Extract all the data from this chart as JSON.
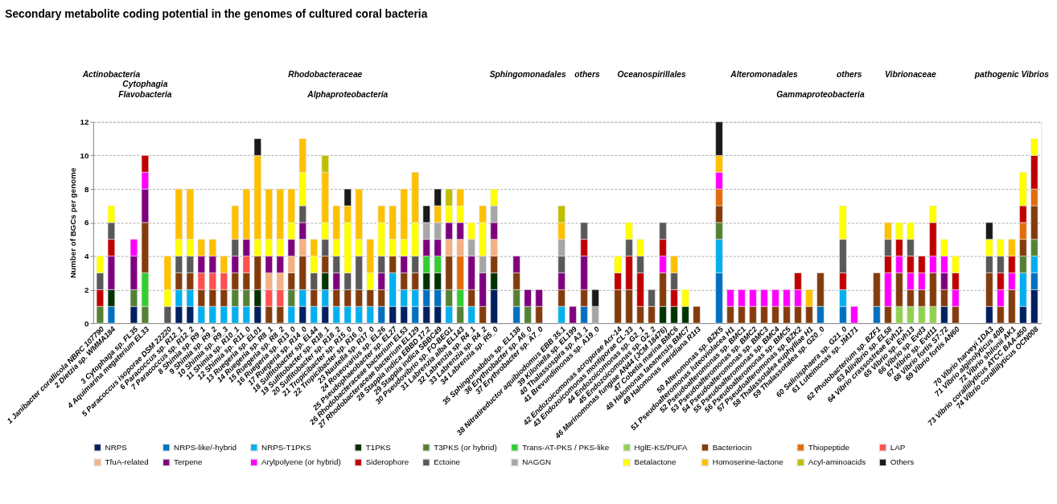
{
  "chart_data": {
    "type": "bar",
    "stacked": true,
    "title": "Secondary metabolite coding potential in the genomes of cultured coral bacteria",
    "ylabel": "Number of BGCs per genome",
    "ylim": [
      0,
      12
    ],
    "yticks": [
      0,
      2,
      4,
      6,
      8,
      10,
      12
    ],
    "grid": "y",
    "legend": "bottom",
    "annotations": [
      "Actinobacteria",
      "Cytophagia",
      "Flavobacteria",
      "Rhodobacteraceae",
      "Alphaproteobacteria",
      "Sphingomonadales",
      "others",
      "Oceanospirillales",
      "Alteromonadales",
      "others",
      "Vibrionaceae",
      "pathogenic Vibrios",
      "Gammaproteobacteria"
    ],
    "categories": [
      "1 Janibacter corallicola NBRC 107790",
      "2 Dietzia sp. WMMA184",
      null,
      "3 Cytophaga sp. FL35",
      "4 Aquimarina megaterium EL33",
      null,
      "5 Paracoccus isoporae DSM 22220",
      "6 Paracoccus sp. R12_1",
      "7 Paracoccus sp. R12_2",
      "8 Shimia sp. R9_1",
      "9 Shimia sp. R9_2",
      "10 Shimia sp. R9_3",
      "11 Shimia sp. R10_1",
      "12 Shimia sp. R11_0",
      "13 Ruegeria sp. EL01",
      "14 Ruegeria sp. R8_1",
      "15 Ruegeria sp. R8_2",
      "16 Ruegeria sp. R13_0",
      "17 Ruegeria sp. R14_0",
      "18 Sulfitobacter sp. EL44",
      "19 Sulfitobacter sp. R18_1",
      "20 Sulfitobacter sp. R18_2",
      "21 Tropicibacter sp. R15_0",
      "22 Tropicibacter sp. R16_0",
      "23 Nautella sp. R17_0",
      "24 Roseovarius sp. EL26",
      "25 Pseudophaeobacter sp. EL27",
      "26 Rhodobacteraceae bacterium EL53",
      "27 Rhodobacteraceae bacterium EL129",
      "28 Stappia indica EBBD 17.2",
      "29 Stappia indica SBBC49",
      "30 Pseudovibrio sp. FO-BEG1",
      "31 Labrenzia alba EL143",
      "32 Labrenzia sp. R4_1",
      "33 Labrenzia sp. R4_2",
      "34 Labrenzia sp. R5_0",
      null,
      "35 Sphingorhabdus sp. EL138",
      "36 Erythrobacter sp. A6_0",
      "37 Erythrobacter sp. A7_0",
      null,
      "38 Nitratireductor aquibiodomus EBB 35.1",
      "39 Kiloniella sp. EL199",
      "40 Thalassospira sp. A3_1",
      "41 Brevundimonas sp. A19_0",
      null,
      "42 Endozoicomonas acroporae Acr-14",
      "43 Endozoicomonas montiporae CL-33",
      "44 Endozoicomonas sp. G2_1",
      "45 Endozoicomonas sp. G2_2",
      "46 Marinomonas fungiae AN44 (JCM 18476)",
      "47 Cobetia marina BMC6",
      "48 Halomonas taeanensis BMC7",
      "49 Halomonas meridiana R1t3",
      null,
      "50 Alteromonas sp. BZK5",
      "51 Pseudoalteromonas luteoviolacea H1",
      "52 Pseudoalteromonas sp. BMC1",
      "53 Pseudoalteromonas sp. BMC2",
      "54 Pseudoalteromonas sp. BMC3",
      "55 Pseudoalteromonas sp. BMC4",
      "56 Pseudoalteromonas sp. BMC5",
      "57 Pseudoalteromonas sp. BZK2",
      "58 Thalassotalea euphylliae H1",
      "59 Thalassotalea sp. G20_0",
      null,
      "60 Salinisphaera sp. G21_0",
      "61 Luteimonas sp. JM171",
      null,
      "62 Photobacterium sp. BZF1",
      "63 Aliivibrio sp. EL58",
      "64 Vibrio crassostreae Evh12",
      "65 Vibrio sp. Evh13",
      "66 Vibrio sp. Evd3",
      "67 Vibrio sp. Evd11",
      "68 Vibrio fortis S7-72",
      "69 Vibrio fortis AN60",
      null,
      null,
      "70 Vibrio harveyi 1DA3",
      "71 Vibrio alginolyticus 40B",
      "72 Vibrio shilonii AK1",
      "73 Vibrio coralliilyticus ATCC BAA-450",
      "74 Vibrio coralliilyticus OCN008"
    ],
    "series": [
      {
        "name": "NRPS",
        "color": "#002060",
        "values": [
          0,
          0,
          null,
          1,
          0,
          null,
          0,
          1,
          1,
          0,
          0,
          0,
          0,
          0,
          1,
          0,
          0,
          0,
          1,
          0,
          1,
          0,
          0,
          0,
          0,
          0,
          1,
          1,
          0,
          1,
          1,
          0,
          0,
          0,
          0,
          2,
          null,
          0,
          0,
          0,
          null,
          0,
          0,
          0,
          0,
          null,
          0,
          0,
          0,
          0,
          0,
          0,
          0,
          0,
          null,
          0,
          0,
          0,
          0,
          0,
          0,
          0,
          0,
          0,
          0,
          null,
          0,
          0,
          null,
          0,
          0,
          0,
          0,
          0,
          0,
          1,
          0,
          null,
          null,
          1,
          0,
          0,
          1,
          2
        ]
      },
      {
        "name": "NRPS-like/-hybrid",
        "color": "#0070c0",
        "values": [
          0,
          1,
          null,
          0,
          0,
          null,
          0,
          0,
          0,
          0,
          0,
          0,
          0,
          0,
          0,
          0,
          0,
          0,
          0,
          0,
          0,
          0,
          0,
          0,
          0,
          1,
          0,
          0,
          1,
          1,
          1,
          0,
          0,
          0,
          0,
          0,
          null,
          1,
          0,
          0,
          null,
          0,
          0,
          1,
          0,
          null,
          0,
          0,
          0,
          0,
          0,
          0,
          0,
          0,
          null,
          3,
          0,
          0,
          0,
          0,
          0,
          0,
          0,
          0,
          1,
          null,
          1,
          0,
          null,
          1,
          0,
          0,
          0,
          0,
          0,
          0,
          0,
          null,
          null,
          0,
          0,
          0,
          0,
          1
        ]
      },
      {
        "name": "NRPS-T1PKS",
        "color": "#00b0f0",
        "values": [
          0,
          0,
          null,
          0,
          0,
          null,
          0,
          1,
          1,
          1,
          1,
          1,
          1,
          1,
          0,
          0,
          0,
          1,
          1,
          1,
          1,
          1,
          1,
          1,
          1,
          0,
          2,
          1,
          1,
          0,
          0,
          1,
          0,
          1,
          0,
          0,
          null,
          0,
          0,
          0,
          null,
          1,
          0,
          0,
          0,
          null,
          0,
          0,
          0,
          0,
          0,
          0,
          0,
          0,
          null,
          2,
          0,
          0,
          0,
          0,
          0,
          0,
          0,
          0,
          0,
          null,
          1,
          0,
          null,
          0,
          0,
          0,
          0,
          0,
          0,
          0,
          0,
          null,
          null,
          0,
          0,
          0,
          2,
          1
        ]
      },
      {
        "name": "T1PKS",
        "color": "#003300",
        "values": [
          0,
          1,
          null,
          0,
          0,
          null,
          0,
          0,
          0,
          0,
          0,
          0,
          0,
          0,
          1,
          0,
          0,
          0,
          0,
          0,
          1,
          0,
          0,
          0,
          0,
          0,
          0,
          0,
          0,
          1,
          1,
          0,
          0,
          0,
          0,
          1,
          null,
          0,
          0,
          0,
          null,
          0,
          0,
          0,
          0,
          null,
          0,
          0,
          0,
          0,
          1,
          1,
          1,
          0,
          null,
          0,
          0,
          0,
          0,
          0,
          0,
          0,
          0,
          0,
          0,
          null,
          0,
          0,
          null,
          0,
          0,
          0,
          0,
          0,
          0,
          0,
          0,
          null,
          null,
          0,
          0,
          0,
          0,
          0
        ]
      },
      {
        "name": "T3PKS (or hybrid)",
        "color": "#548235",
        "values": [
          1,
          0,
          null,
          1,
          1,
          null,
          0,
          0,
          0,
          0,
          0,
          0,
          1,
          1,
          0,
          0,
          0,
          1,
          0,
          0,
          0,
          0,
          0,
          0,
          0,
          0,
          0,
          0,
          0,
          0,
          0,
          1,
          1,
          0,
          0,
          0,
          null,
          1,
          1,
          0,
          null,
          0,
          0,
          0,
          0,
          null,
          0,
          0,
          0,
          0,
          0,
          0,
          0,
          0,
          null,
          1,
          0,
          0,
          0,
          0,
          0,
          0,
          0,
          0,
          0,
          null,
          0,
          0,
          null,
          0,
          0,
          0,
          0,
          0,
          0,
          0,
          0,
          null,
          null,
          0,
          0,
          0,
          1,
          1
        ]
      },
      {
        "name": "Trans-AT-PKS / PKS-like",
        "color": "#33cc33",
        "values": [
          0,
          0,
          null,
          0,
          2,
          null,
          0,
          0,
          0,
          0,
          0,
          0,
          0,
          0,
          0,
          0,
          0,
          0,
          0,
          0,
          0,
          0,
          0,
          0,
          0,
          0,
          0,
          0,
          0,
          1,
          1,
          0,
          1,
          0,
          0,
          0,
          null,
          0,
          0,
          0,
          null,
          0,
          0,
          0,
          0,
          null,
          0,
          0,
          0,
          0,
          0,
          0,
          0,
          0,
          null,
          0,
          0,
          0,
          0,
          0,
          0,
          0,
          0,
          0,
          0,
          null,
          0,
          0,
          null,
          0,
          0,
          0,
          0,
          0,
          0,
          0,
          0,
          null,
          null,
          0,
          0,
          0,
          0,
          0
        ]
      },
      {
        "name": "HglE-KS/PUFA",
        "color": "#92d050",
        "values": [
          0,
          0,
          null,
          0,
          0,
          null,
          0,
          0,
          0,
          0,
          0,
          0,
          0,
          0,
          0,
          0,
          0,
          0,
          0,
          0,
          0,
          0,
          0,
          0,
          0,
          0,
          0,
          0,
          0,
          0,
          0,
          0,
          0,
          0,
          0,
          0,
          null,
          0,
          0,
          0,
          null,
          0,
          0,
          0,
          0,
          null,
          0,
          0,
          0,
          0,
          0,
          0,
          0,
          0,
          null,
          0,
          0,
          0,
          0,
          0,
          0,
          0,
          0,
          0,
          0,
          null,
          0,
          0,
          null,
          0,
          0,
          1,
          1,
          1,
          1,
          0,
          0,
          null,
          null,
          0,
          0,
          0,
          0,
          0
        ]
      },
      {
        "name": "Bacteriocin",
        "color": "#843c0c",
        "values": [
          0,
          0,
          null,
          0,
          3,
          null,
          0,
          1,
          1,
          1,
          1,
          1,
          1,
          1,
          2,
          1,
          1,
          1,
          2,
          1,
          1,
          1,
          1,
          1,
          1,
          1,
          1,
          1,
          1,
          0,
          0,
          2,
          0,
          1,
          1,
          1,
          null,
          1,
          0,
          1,
          null,
          1,
          0,
          1,
          0,
          null,
          2,
          2,
          1,
          1,
          2,
          0,
          0,
          1,
          null,
          1,
          1,
          1,
          1,
          1,
          1,
          1,
          1,
          1,
          2,
          null,
          0,
          0,
          null,
          2,
          1,
          2,
          1,
          1,
          2,
          1,
          1,
          null,
          null,
          2,
          1,
          2,
          1,
          2
        ]
      },
      {
        "name": "Thiopeptide",
        "color": "#e46c0a",
        "values": [
          0,
          0,
          null,
          0,
          0,
          null,
          0,
          0,
          0,
          0,
          0,
          0,
          0,
          0,
          0,
          0,
          0,
          0,
          0,
          0,
          0,
          0,
          0,
          0,
          0,
          0,
          0,
          0,
          0,
          0,
          0,
          0,
          2,
          0,
          0,
          0,
          null,
          0,
          0,
          0,
          null,
          0,
          0,
          0,
          0,
          null,
          0,
          0,
          0,
          0,
          0,
          0,
          0,
          0,
          null,
          1,
          0,
          0,
          0,
          0,
          0,
          0,
          0,
          0,
          0,
          null,
          0,
          0,
          null,
          0,
          0,
          0,
          0,
          0,
          0,
          0,
          0,
          null,
          null,
          0,
          0,
          0,
          1,
          1
        ]
      },
      {
        "name": "LAP",
        "color": "#ff5050",
        "values": [
          0,
          0,
          null,
          0,
          0,
          null,
          0,
          0,
          0,
          1,
          1,
          1,
          0,
          1,
          0,
          1,
          1,
          0,
          0,
          0,
          0,
          0,
          0,
          0,
          0,
          0,
          0,
          0,
          0,
          0,
          0,
          0,
          0,
          0,
          0,
          0,
          null,
          0,
          0,
          0,
          null,
          0,
          0,
          0,
          0,
          null,
          0,
          0,
          0,
          0,
          0,
          0,
          0,
          0,
          null,
          0,
          0,
          0,
          0,
          0,
          0,
          0,
          0,
          0,
          0,
          null,
          0,
          0,
          null,
          0,
          0,
          0,
          0,
          0,
          0,
          0,
          0,
          null,
          null,
          0,
          0,
          0,
          0,
          0
        ]
      },
      {
        "name": "TfuA-related",
        "color": "#f4b183",
        "values": [
          0,
          0,
          null,
          0,
          0,
          null,
          0,
          0,
          0,
          0,
          0,
          0,
          0,
          0,
          0,
          1,
          1,
          1,
          1,
          0,
          0,
          0,
          0,
          0,
          0,
          0,
          0,
          0,
          0,
          0,
          0,
          1,
          1,
          0,
          0,
          1,
          null,
          0,
          0,
          0,
          null,
          0,
          0,
          0,
          0,
          null,
          0,
          0,
          0,
          0,
          0,
          0,
          0,
          0,
          null,
          0,
          0,
          0,
          0,
          0,
          0,
          0,
          0,
          0,
          0,
          null,
          0,
          0,
          null,
          0,
          0,
          0,
          0,
          0,
          0,
          0,
          0,
          null,
          null,
          0,
          0,
          0,
          0,
          0
        ]
      },
      {
        "name": "Terpene",
        "color": "#7f007f",
        "values": [
          0,
          2,
          null,
          2,
          2,
          null,
          0,
          0,
          0,
          1,
          1,
          0,
          1,
          1,
          0,
          1,
          1,
          1,
          1,
          0,
          0,
          1,
          0,
          0,
          0,
          1,
          0,
          1,
          0,
          1,
          1,
          1,
          1,
          2,
          2,
          1,
          null,
          1,
          1,
          1,
          null,
          1,
          1,
          2,
          0,
          null,
          0,
          0,
          0,
          0,
          0,
          0,
          0,
          0,
          null,
          0,
          0,
          0,
          0,
          0,
          0,
          0,
          0,
          0,
          0,
          null,
          0,
          0,
          null,
          0,
          0,
          0,
          0,
          0,
          0,
          1,
          0,
          null,
          null,
          0,
          0,
          0,
          0,
          0
        ]
      },
      {
        "name": "Arylpolyene (or hybrid)",
        "color": "#ff00ff",
        "values": [
          0,
          0,
          null,
          1,
          1,
          null,
          0,
          0,
          0,
          0,
          0,
          0,
          0,
          0,
          0,
          0,
          0,
          0,
          0,
          0,
          0,
          0,
          0,
          0,
          0,
          0,
          0,
          0,
          0,
          0,
          0,
          0,
          0,
          0,
          0,
          0,
          null,
          0,
          0,
          0,
          null,
          0,
          0,
          0,
          0,
          null,
          0,
          0,
          0,
          0,
          1,
          0,
          0,
          0,
          null,
          1,
          1,
          1,
          1,
          1,
          1,
          1,
          1,
          0,
          0,
          null,
          0,
          1,
          null,
          0,
          2,
          1,
          1,
          1,
          1,
          1,
          1,
          null,
          null,
          0,
          1,
          1,
          0,
          0
        ]
      },
      {
        "name": "Siderophore",
        "color": "#c00000",
        "values": [
          1,
          1,
          null,
          0,
          1,
          null,
          0,
          0,
          0,
          0,
          0,
          0,
          0,
          0,
          0,
          0,
          0,
          0,
          0,
          0,
          0,
          0,
          0,
          0,
          0,
          0,
          0,
          0,
          0,
          0,
          0,
          0,
          0,
          0,
          0,
          0,
          null,
          0,
          0,
          0,
          null,
          0,
          0,
          1,
          0,
          null,
          1,
          2,
          2,
          0,
          1,
          1,
          0,
          0,
          null,
          0,
          0,
          0,
          0,
          0,
          0,
          0,
          1,
          0,
          0,
          null,
          1,
          0,
          null,
          0,
          1,
          1,
          1,
          1,
          2,
          0,
          1,
          null,
          null,
          0,
          1,
          1,
          1,
          2
        ]
      },
      {
        "name": "Ectoine",
        "color": "#595959",
        "values": [
          1,
          1,
          null,
          0,
          0,
          null,
          1,
          1,
          1,
          0,
          0,
          0,
          1,
          0,
          0,
          0,
          0,
          0,
          1,
          1,
          1,
          1,
          1,
          2,
          0,
          1,
          0,
          0,
          1,
          0,
          0,
          0,
          0,
          0,
          0,
          0,
          null,
          0,
          0,
          0,
          null,
          1,
          0,
          1,
          0,
          null,
          0,
          1,
          1,
          1,
          1,
          1,
          0,
          0,
          null,
          0,
          0,
          0,
          0,
          0,
          0,
          0,
          0,
          0,
          0,
          null,
          2,
          0,
          null,
          0,
          1,
          0,
          1,
          0,
          0,
          0,
          0,
          null,
          null,
          1,
          1,
          0,
          0,
          0
        ]
      },
      {
        "name": "NAGGN",
        "color": "#a6a6a6",
        "values": [
          0,
          0,
          null,
          0,
          0,
          null,
          0,
          0,
          0,
          0,
          0,
          0,
          0,
          0,
          0,
          0,
          0,
          0,
          0,
          0,
          0,
          0,
          0,
          0,
          0,
          0,
          0,
          0,
          0,
          1,
          1,
          0,
          0,
          1,
          1,
          1,
          null,
          0,
          0,
          0,
          null,
          1,
          0,
          0,
          1,
          null,
          0,
          0,
          0,
          0,
          0,
          0,
          0,
          0,
          null,
          0,
          0,
          0,
          0,
          0,
          0,
          0,
          0,
          0,
          0,
          null,
          0,
          0,
          null,
          0,
          0,
          0,
          0,
          0,
          0,
          0,
          0,
          null,
          null,
          0,
          0,
          0,
          0,
          0
        ]
      },
      {
        "name": "Betalactone",
        "color": "#ffff00",
        "values": [
          1,
          1,
          null,
          0,
          0,
          null,
          1,
          1,
          1,
          0,
          0,
          0,
          0,
          0,
          1,
          1,
          1,
          1,
          2,
          1,
          1,
          1,
          3,
          1,
          1,
          2,
          1,
          1,
          2,
          0,
          0,
          1,
          1,
          1,
          2,
          1,
          null,
          0,
          0,
          0,
          null,
          0,
          0,
          0,
          0,
          null,
          1,
          1,
          1,
          0,
          0,
          0,
          1,
          0,
          null,
          0,
          0,
          0,
          0,
          0,
          0,
          0,
          0,
          0,
          0,
          null,
          2,
          0,
          null,
          0,
          0,
          1,
          1,
          0,
          1,
          1,
          1,
          null,
          null,
          1,
          1,
          0,
          2,
          1
        ]
      },
      {
        "name": "Homoserine-lactone",
        "color": "#ffc000",
        "values": [
          0,
          0,
          null,
          0,
          0,
          null,
          2,
          3,
          3,
          1,
          1,
          1,
          2,
          3,
          5,
          3,
          3,
          2,
          2,
          1,
          3,
          2,
          1,
          3,
          2,
          1,
          2,
          3,
          3,
          0,
          1,
          0,
          1,
          0,
          1,
          0,
          null,
          0,
          0,
          0,
          null,
          1,
          0,
          0,
          0,
          null,
          0,
          0,
          0,
          0,
          0,
          1,
          0,
          0,
          null,
          1,
          0,
          0,
          0,
          0,
          0,
          0,
          0,
          1,
          0,
          null,
          0,
          0,
          null,
          0,
          1,
          0,
          0,
          0,
          0,
          0,
          0,
          null,
          null,
          0,
          0,
          1,
          0,
          0
        ]
      },
      {
        "name": "Acyl-aminoacids",
        "color": "#bfbf00",
        "values": [
          0,
          0,
          null,
          0,
          0,
          null,
          0,
          0,
          0,
          0,
          0,
          0,
          0,
          0,
          0,
          0,
          0,
          0,
          0,
          0,
          1,
          0,
          0,
          0,
          0,
          0,
          0,
          0,
          0,
          0,
          0,
          1,
          0,
          0,
          0,
          0,
          null,
          0,
          0,
          0,
          null,
          1,
          0,
          0,
          0,
          null,
          0,
          0,
          0,
          0,
          0,
          0,
          0,
          0,
          null,
          0,
          0,
          0,
          0,
          0,
          0,
          0,
          0,
          0,
          0,
          null,
          0,
          0,
          null,
          0,
          0,
          0,
          0,
          0,
          0,
          0,
          0,
          null,
          null,
          0,
          0,
          0,
          0,
          0
        ]
      },
      {
        "name": "Others",
        "color": "#1a1a1a",
        "values": [
          0,
          0,
          null,
          0,
          0,
          null,
          0,
          0,
          0,
          0,
          0,
          0,
          0,
          0,
          1,
          0,
          0,
          0,
          0,
          0,
          0,
          0,
          1,
          0,
          0,
          0,
          0,
          0,
          0,
          1,
          1,
          0,
          0,
          0,
          0,
          0,
          null,
          0,
          0,
          0,
          null,
          0,
          0,
          0,
          1,
          null,
          0,
          0,
          0,
          0,
          0,
          0,
          0,
          0,
          null,
          2,
          0,
          0,
          0,
          0,
          0,
          0,
          0,
          0,
          0,
          null,
          0,
          0,
          null,
          0,
          0,
          0,
          0,
          0,
          0,
          0,
          0,
          null,
          null,
          1,
          0,
          0,
          0,
          0
        ]
      }
    ]
  }
}
